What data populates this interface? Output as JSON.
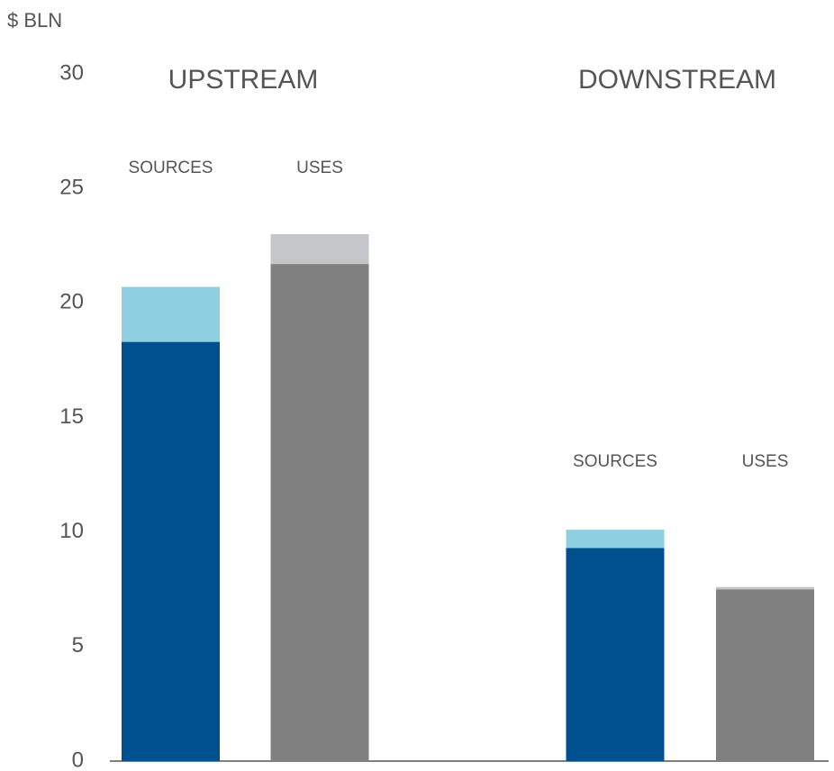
{
  "chart_data": {
    "type": "stacked_bar",
    "y_axis_label": "$ BLN",
    "groups": [
      "UPSTREAM",
      "DOWNSTREAM"
    ],
    "categories": [
      "SOURCES",
      "USES",
      "SOURCES",
      "USES"
    ],
    "series": [
      {
        "colors": [
          "#004f8f",
          "#808080",
          "#004f8f",
          "#808080"
        ],
        "values": [
          18.3,
          21.7,
          9.3,
          7.5
        ]
      },
      {
        "colors": [
          "#8fd0e0",
          "#c4c6c9",
          "#8fd0e0",
          "#c4c6c9"
        ],
        "values": [
          2.4,
          1.3,
          0.8,
          0.1
        ]
      }
    ],
    "ylim": [
      0,
      30
    ],
    "yticks": [
      0,
      5,
      10,
      15,
      20,
      25,
      30
    ],
    "grid": false
  }
}
